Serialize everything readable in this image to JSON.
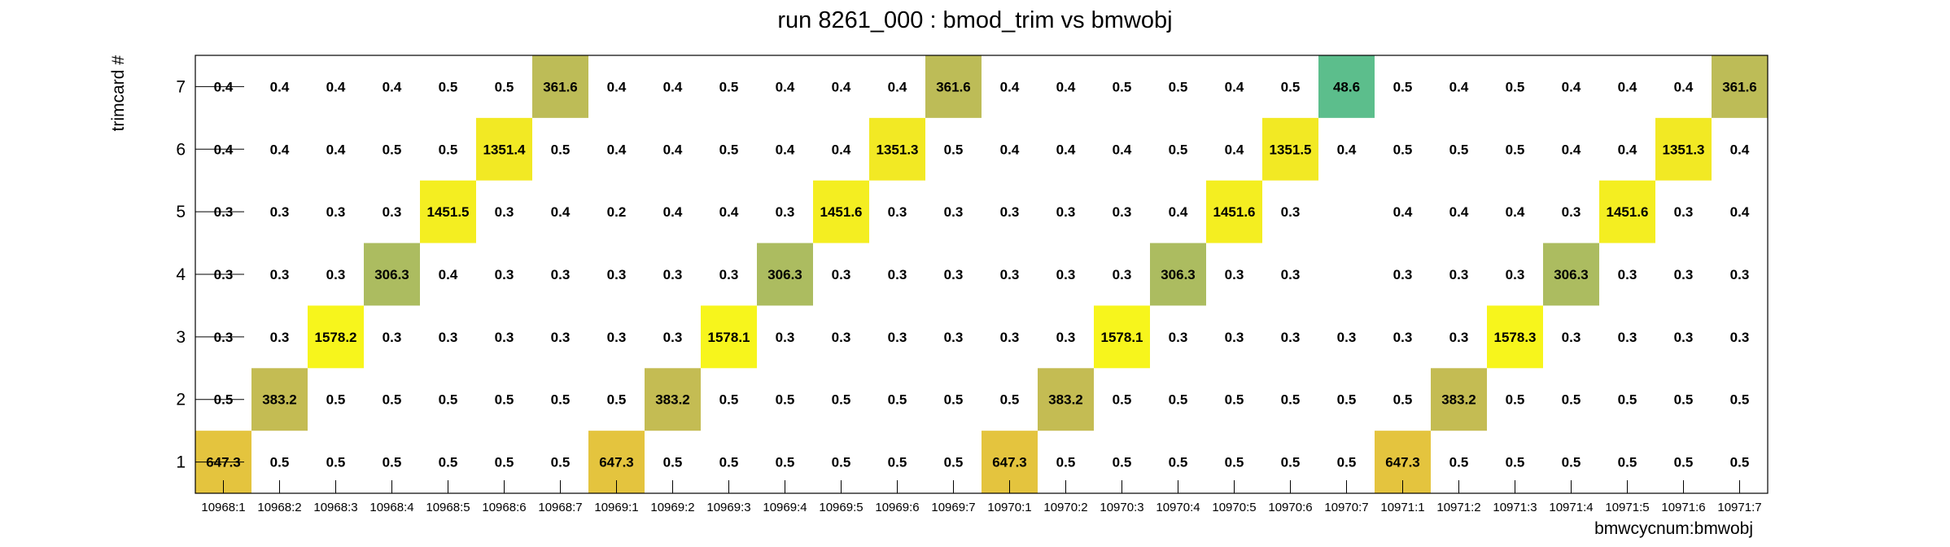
{
  "chart_data": {
    "type": "heatmap",
    "title": "run 8261_000 : bmod_trim vs bmwobj",
    "xlabel": "bmwcycnum:bmwobj",
    "ylabel": "trimcard #",
    "x_categories": [
      "10968:1",
      "10968:2",
      "10968:3",
      "10968:4",
      "10968:5",
      "10968:6",
      "10968:7",
      "10969:1",
      "10969:2",
      "10969:3",
      "10969:4",
      "10969:5",
      "10969:6",
      "10969:7",
      "10970:1",
      "10970:2",
      "10970:3",
      "10970:4",
      "10970:5",
      "10970:6",
      "10970:7",
      "10971:1",
      "10971:2",
      "10971:3",
      "10971:4",
      "10971:5",
      "10971:6",
      "10971:7"
    ],
    "y_categories": [
      "1",
      "2",
      "3",
      "4",
      "5",
      "6",
      "7"
    ],
    "rows": [
      {
        "y": "7",
        "values": [
          0.4,
          0.4,
          0.4,
          0.4,
          0.5,
          0.5,
          361.6,
          0.4,
          0.4,
          0.5,
          0.4,
          0.4,
          0.4,
          361.6,
          0.4,
          0.4,
          0.5,
          0.5,
          0.4,
          0.5,
          48.6,
          0.5,
          0.4,
          0.5,
          0.4,
          0.4,
          0.4,
          361.6
        ]
      },
      {
        "y": "6",
        "values": [
          0.4,
          0.4,
          0.4,
          0.5,
          0.5,
          1351.4,
          0.5,
          0.4,
          0.4,
          0.5,
          0.4,
          0.4,
          1351.3,
          0.5,
          0.4,
          0.4,
          0.4,
          0.5,
          0.4,
          1351.5,
          0.4,
          0.5,
          0.5,
          0.5,
          0.4,
          0.4,
          1351.3,
          0.4
        ]
      },
      {
        "y": "5",
        "values": [
          0.3,
          0.3,
          0.3,
          0.3,
          1451.5,
          0.3,
          0.4,
          0.2,
          0.4,
          0.4,
          0.3,
          1451.6,
          0.3,
          0.3,
          0.3,
          0.3,
          0.3,
          0.4,
          1451.6,
          0.3,
          null,
          0.4,
          0.4,
          0.4,
          0.3,
          1451.6,
          0.3,
          0.4
        ]
      },
      {
        "y": "4",
        "values": [
          0.3,
          0.3,
          0.3,
          306.3,
          0.4,
          0.3,
          0.3,
          0.3,
          0.3,
          0.3,
          306.3,
          0.3,
          0.3,
          0.3,
          0.3,
          0.3,
          0.3,
          306.3,
          0.3,
          0.3,
          null,
          0.3,
          0.3,
          0.3,
          306.3,
          0.3,
          0.3,
          0.3
        ]
      },
      {
        "y": "3",
        "values": [
          0.3,
          0.3,
          1578.2,
          0.3,
          0.3,
          0.3,
          0.3,
          0.3,
          0.3,
          1578.1,
          0.3,
          0.3,
          0.3,
          0.3,
          0.3,
          0.3,
          1578.1,
          0.3,
          0.3,
          0.3,
          0.3,
          0.3,
          0.3,
          1578.3,
          0.3,
          0.3,
          0.3,
          0.3
        ]
      },
      {
        "y": "2",
        "values": [
          0.5,
          383.2,
          0.5,
          0.5,
          0.5,
          0.5,
          0.5,
          0.5,
          383.2,
          0.5,
          0.5,
          0.5,
          0.5,
          0.5,
          0.5,
          383.2,
          0.5,
          0.5,
          0.5,
          0.5,
          0.5,
          0.5,
          383.2,
          0.5,
          0.5,
          0.5,
          0.5,
          0.5
        ]
      },
      {
        "y": "1",
        "values": [
          647.3,
          0.5,
          0.5,
          0.5,
          0.5,
          0.5,
          0.5,
          647.3,
          0.5,
          0.5,
          0.5,
          0.5,
          0.5,
          0.5,
          647.3,
          0.5,
          0.5,
          0.5,
          0.5,
          0.5,
          0.5,
          647.3,
          0.5,
          0.5,
          0.5,
          0.5,
          0.5,
          0.5
        ]
      }
    ],
    "color_scale": {
      "low": "#4dbe94",
      "mid": "#e0bb44",
      "high": "#f7f51c"
    },
    "grid": false,
    "legend": "none"
  }
}
